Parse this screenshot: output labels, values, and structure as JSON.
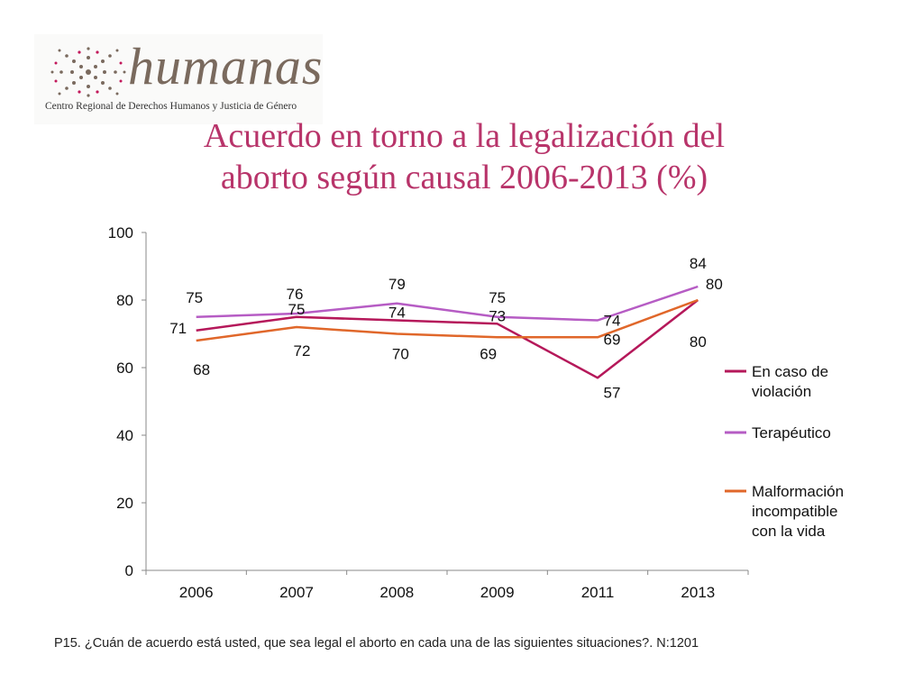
{
  "logo": {
    "name": "humanas",
    "subtitle": "Centro Regional de Derechos Humanos y Justicia de Género"
  },
  "title": {
    "line1": "Acuerdo en torno a la legalización del",
    "line2": "aborto según causal 2006-2013 (%)"
  },
  "footnote": "P15. ¿Cuán de acuerdo está usted, que sea legal el aborto en cada una de las siguientes situaciones?. N:1201",
  "colors": {
    "title": "#b8346a",
    "violacion": "#b5185a",
    "terapeutico": "#b65cc4",
    "malformacion": "#e0672a"
  },
  "chart_data": {
    "type": "line",
    "title": "Acuerdo en torno a la legalización del aborto según causal 2006-2013 (%)",
    "categories": [
      "2006",
      "2007",
      "2008",
      "2009",
      "2011",
      "2013"
    ],
    "ylim": [
      0,
      100
    ],
    "yticks": [
      "0",
      "20",
      "40",
      "60",
      "80",
      "100"
    ],
    "grid": false,
    "legend_position": "right",
    "series": [
      {
        "key": "violacion",
        "name": "En caso de violación",
        "legend_lines": [
          "En caso de",
          "violación"
        ],
        "color": "#b5185a",
        "values": [
          71,
          75,
          74,
          73,
          57,
          80
        ],
        "labels": [
          "71",
          "75",
          "74",
          "73",
          "57",
          "80"
        ]
      },
      {
        "key": "terapeutico",
        "name": "Terapéutico",
        "legend_lines": [
          "Terapéutico"
        ],
        "color": "#b65cc4",
        "values": [
          75,
          76,
          79,
          75,
          74,
          84
        ],
        "labels": [
          "75",
          "76",
          "79",
          "75",
          "74",
          "84"
        ]
      },
      {
        "key": "malformacion",
        "name": "Malformación incompatible con la vida",
        "legend_lines": [
          "Malformación",
          "incompatible",
          "con la vida"
        ],
        "color": "#e0672a",
        "values": [
          68,
          72,
          70,
          69,
          69,
          80
        ],
        "labels": [
          "68",
          "72",
          "70",
          "69",
          "69",
          "80"
        ]
      }
    ]
  }
}
